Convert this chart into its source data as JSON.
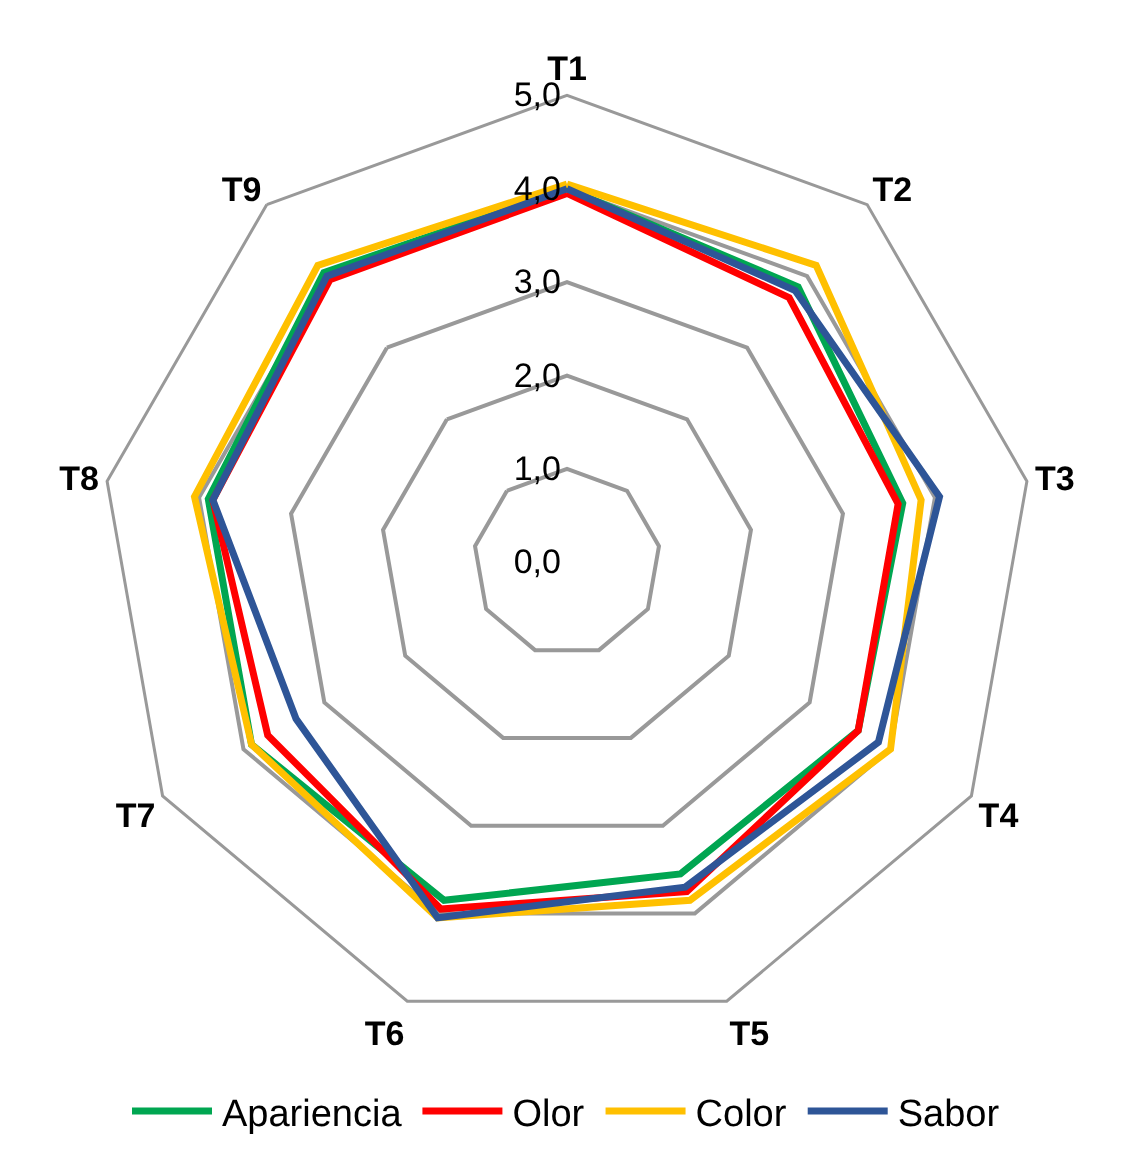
{
  "chart_data": {
    "type": "radar",
    "categories": [
      "T1",
      "T2",
      "T3",
      "T4",
      "T5",
      "T6",
      "T7",
      "T8",
      "T9"
    ],
    "series": [
      {
        "name": "Apariencia",
        "color": "#00a651",
        "values": [
          4.0,
          3.85,
          3.65,
          3.6,
          3.55,
          3.85,
          3.9,
          3.9,
          4.05
        ]
      },
      {
        "name": "Olor",
        "color": "#ff0000",
        "values": [
          3.95,
          3.7,
          3.6,
          3.6,
          3.75,
          3.95,
          3.7,
          3.85,
          3.95
        ]
      },
      {
        "name": "Color",
        "color": "#ffc000",
        "values": [
          4.05,
          4.15,
          3.85,
          4.0,
          3.85,
          4.05,
          3.9,
          4.05,
          4.15
        ]
      },
      {
        "name": "Sabor",
        "color": "#2e5597",
        "values": [
          4.0,
          3.8,
          4.05,
          3.85,
          3.7,
          4.05,
          3.35,
          3.85,
          4.0
        ]
      }
    ],
    "ylim": [
      0,
      5
    ],
    "yticks": [
      {
        "value": 0,
        "label": "0,0"
      },
      {
        "value": 1,
        "label": "1,0"
      },
      {
        "value": 2,
        "label": "2,0"
      },
      {
        "value": 3,
        "label": "3,0"
      },
      {
        "value": 4,
        "label": "4,0"
      },
      {
        "value": 5,
        "label": "5,0"
      }
    ],
    "grid": true,
    "legend": "bottom",
    "marker": "none",
    "line_style": "solid"
  }
}
